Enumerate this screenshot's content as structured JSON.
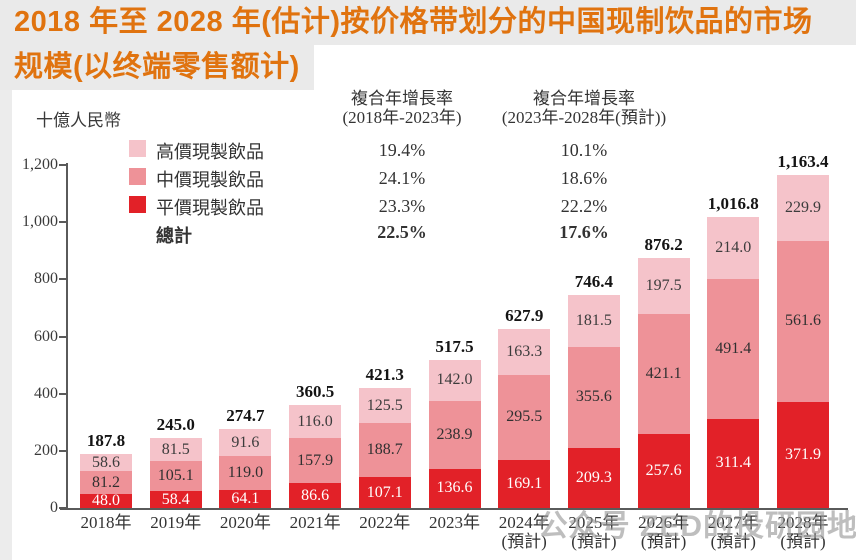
{
  "title": {
    "lines": [
      "2018 年至 2028 年(估计)按价格带划分的中国现制饮品的市场",
      "规模(以终端零售额计)"
    ]
  },
  "legend": {
    "items": [
      {
        "label": "高價現製飲品",
        "color": "#f5c3ca"
      },
      {
        "label": "中價現製飲品",
        "color": "#ee9298"
      },
      {
        "label": "平價現製飲品",
        "color": "#e22128"
      }
    ],
    "total_label": "總計"
  },
  "cagr": {
    "columns": [
      {
        "title": "複合年增長率",
        "subtitle": "(2018年-2023年)",
        "values": [
          "19.4%",
          "24.1%",
          "23.3%"
        ],
        "total": "22.5%"
      },
      {
        "title": "複合年增長率",
        "subtitle": "(2023年-2028年(預計))",
        "values": [
          "10.1%",
          "18.6%",
          "22.2%"
        ],
        "total": "17.6%"
      }
    ]
  },
  "chart_data": {
    "type": "bar",
    "stacked": true,
    "title": "2018年至2028年(估计)按价格带划分的中国现制饮品的市场规模(以终端零售额计)",
    "unit_label": "十億人民幣",
    "ylabel": "十億人民幣",
    "xlabel": "",
    "ylim": [
      0,
      1200
    ],
    "grid": false,
    "legend_position": "upper-left",
    "y_ticks": [
      0,
      200,
      400,
      600,
      800,
      1000,
      1200
    ],
    "y_tick_labels": [
      "0",
      "200",
      "400",
      "600",
      "800",
      "1,000",
      "1,200"
    ],
    "categories": [
      "2018年",
      "2019年",
      "2020年",
      "2021年",
      "2022年",
      "2023年",
      "2024年",
      "2025年",
      "2026年",
      "2027年",
      "2028年"
    ],
    "category_sublabels": [
      "",
      "",
      "",
      "",
      "",
      "",
      "(預計)",
      "(預計)",
      "(預計)",
      "(預計)",
      "(預計)"
    ],
    "series": [
      {
        "name": "高價現製飲品",
        "color": "#f5c3ca",
        "label_color": "#3c3c3c",
        "values": [
          58.6,
          81.5,
          91.6,
          116.0,
          125.5,
          142.0,
          163.3,
          181.5,
          197.5,
          214.0,
          229.9
        ]
      },
      {
        "name": "中價現製飲品",
        "color": "#ee9298",
        "label_color": "#303030",
        "values": [
          81.2,
          105.1,
          119.0,
          157.9,
          188.7,
          238.9,
          295.5,
          355.6,
          421.1,
          491.4,
          561.6
        ]
      },
      {
        "name": "平價現製飲品",
        "color": "#e22128",
        "label_color": "#ffffff",
        "values": [
          48.0,
          58.4,
          64.1,
          86.6,
          107.1,
          136.6,
          169.1,
          209.3,
          257.6,
          311.4,
          371.9
        ]
      }
    ],
    "totals": [
      187.8,
      245.0,
      274.7,
      360.5,
      421.3,
      517.5,
      627.9,
      746.4,
      876.2,
      1016.8,
      1163.4
    ],
    "totals_display": [
      "187.8",
      "245.0",
      "274.7",
      "360.5",
      "421.3",
      "517.5",
      "627.9",
      "746.4",
      "876.2",
      "1,016.8",
      "1,163.4"
    ]
  },
  "watermark": {
    "icon": "wechat-icon",
    "text": "公众号 ZED的投研园地"
  }
}
